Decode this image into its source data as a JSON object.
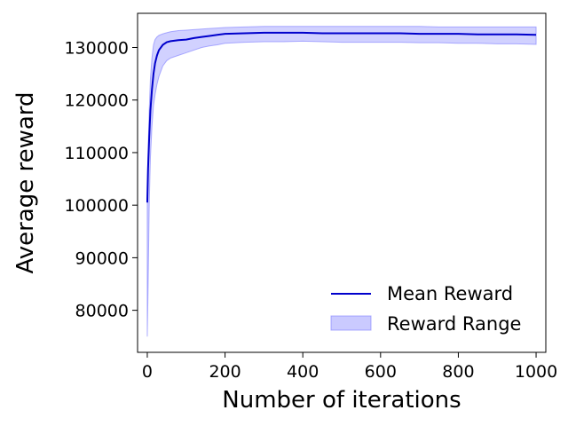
{
  "chart_data": {
    "type": "line",
    "title": "",
    "xlabel": "Number of iterations",
    "ylabel": "Average reward",
    "xlim": [
      -25,
      1025
    ],
    "ylim": [
      72000,
      136500
    ],
    "x_ticks": [
      0,
      200,
      400,
      600,
      800,
      1000
    ],
    "x_tick_labels": [
      "0",
      "200",
      "400",
      "600",
      "800",
      "1000"
    ],
    "y_ticks": [
      80000,
      90000,
      100000,
      110000,
      120000,
      130000
    ],
    "y_tick_labels": [
      "80000",
      "90000",
      "100000",
      "110000",
      "120000",
      "130000"
    ],
    "grid": false,
    "legend": {
      "placement": "lower-right",
      "entries": [
        {
          "label": "Mean Reward",
          "type": "line",
          "color": "#0000cc"
        },
        {
          "label": "Reward Range",
          "type": "band",
          "color": "#7b7bff"
        }
      ]
    },
    "series": [
      {
        "name": "Mean Reward",
        "color": "#0000cc",
        "x": [
          0,
          2,
          5,
          8,
          12,
          16,
          20,
          25,
          30,
          40,
          50,
          60,
          80,
          100,
          120,
          140,
          160,
          180,
          200,
          250,
          300,
          350,
          400,
          450,
          500,
          550,
          600,
          650,
          700,
          750,
          800,
          850,
          900,
          950,
          1000
        ],
        "y": [
          100500,
          107000,
          113000,
          118000,
          122000,
          125000,
          127000,
          128500,
          129500,
          130500,
          131000,
          131200,
          131400,
          131500,
          131800,
          132000,
          132200,
          132400,
          132600,
          132700,
          132800,
          132800,
          132800,
          132700,
          132700,
          132700,
          132700,
          132700,
          132600,
          132600,
          132600,
          132500,
          132500,
          132500,
          132400
        ]
      },
      {
        "name": "Reward Range",
        "type": "band",
        "color": "#7b7bff",
        "x": [
          0,
          2,
          5,
          8,
          12,
          16,
          20,
          25,
          30,
          40,
          50,
          60,
          80,
          100,
          120,
          140,
          160,
          180,
          200,
          250,
          300,
          350,
          400,
          450,
          500,
          550,
          600,
          650,
          700,
          750,
          800,
          850,
          900,
          950,
          1000
        ],
        "lower": [
          75000,
          84000,
          100000,
          109000,
          115000,
          119000,
          121000,
          123000,
          124500,
          126500,
          127500,
          128000,
          128500,
          129000,
          129500,
          130000,
          130300,
          130500,
          130800,
          131000,
          131100,
          131100,
          131200,
          131100,
          131000,
          131000,
          131000,
          131000,
          130900,
          130900,
          130800,
          130800,
          130700,
          130700,
          130600
        ],
        "upper": [
          102000,
          110000,
          118000,
          124000,
          128000,
          130500,
          131500,
          132000,
          132300,
          132600,
          132800,
          133000,
          133200,
          133300,
          133400,
          133500,
          133600,
          133700,
          133800,
          133900,
          134000,
          134000,
          134000,
          134000,
          134000,
          134000,
          134000,
          134000,
          134000,
          133900,
          133900,
          133900,
          133900,
          133900,
          133900
        ]
      }
    ]
  }
}
